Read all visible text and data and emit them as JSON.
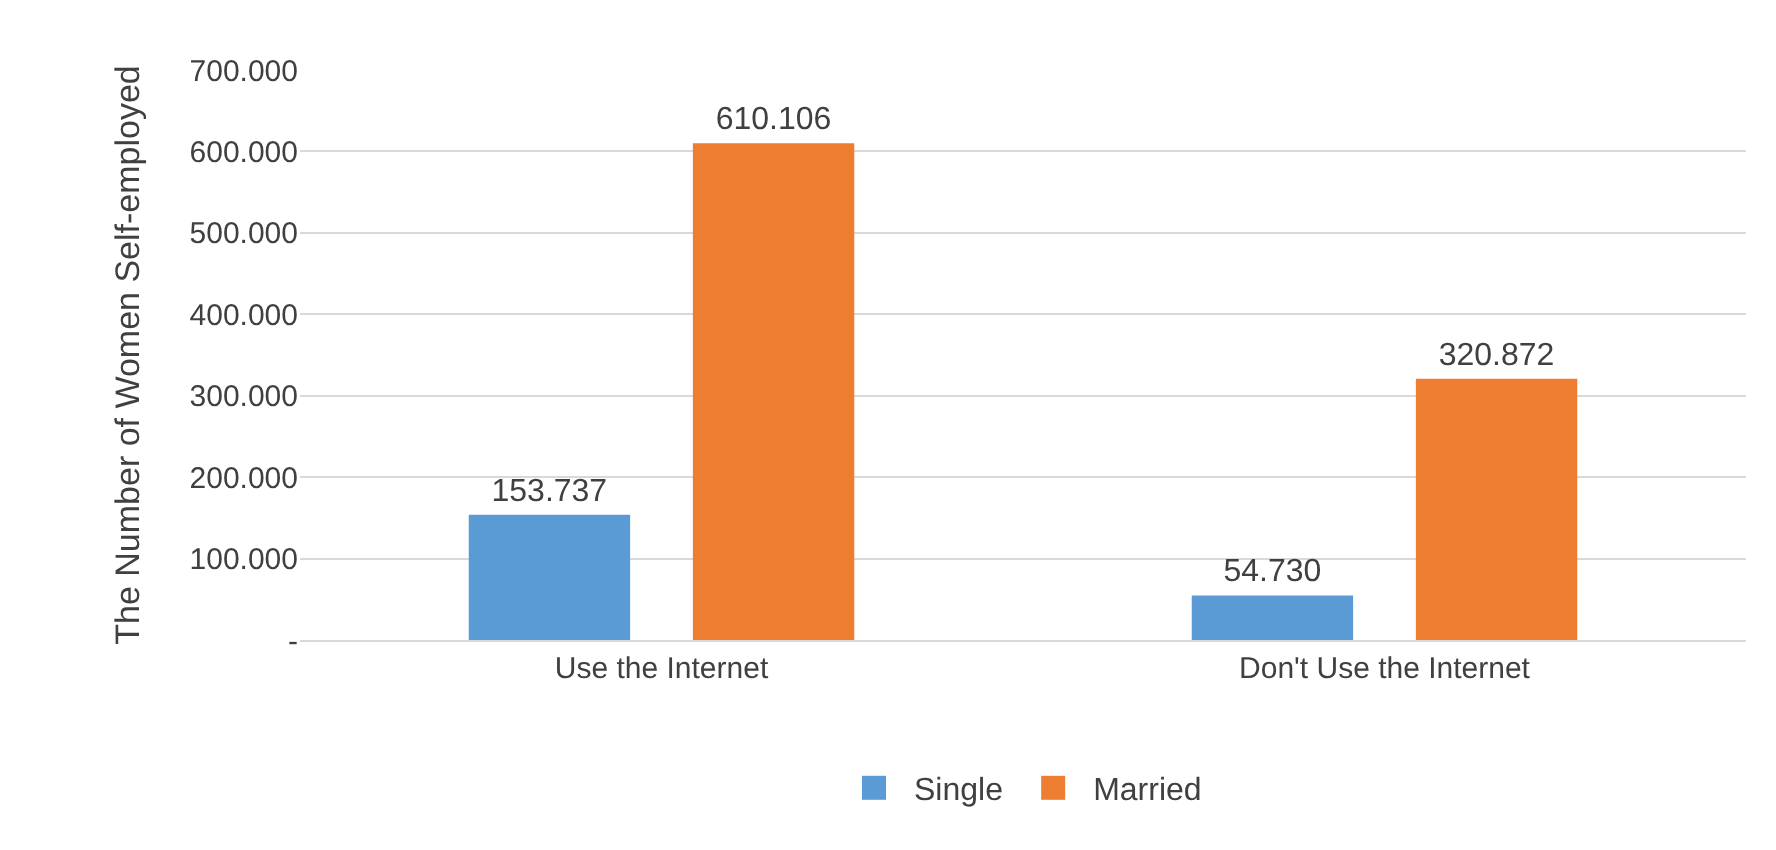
{
  "chart_data": {
    "type": "bar",
    "ylabel": "The Number of Women Self-employed",
    "categories": [
      "Use the Internet",
      "Don't Use the Internet"
    ],
    "series": [
      {
        "name": "Single",
        "color": "#5b9bd5",
        "values": [
          153737,
          54730
        ],
        "value_labels": [
          "153.737",
          "54.730"
        ]
      },
      {
        "name": "Married",
        "color": "#ed7d31",
        "values": [
          610106,
          320872
        ],
        "value_labels": [
          "610.106",
          "320.872"
        ]
      }
    ],
    "ylim": [
      0,
      700000
    ],
    "yticks": [
      {
        "value": 0,
        "label": "-"
      },
      {
        "value": 100000,
        "label": "100.000"
      },
      {
        "value": 200000,
        "label": "200.000"
      },
      {
        "value": 300000,
        "label": "300.000"
      },
      {
        "value": 400000,
        "label": "400.000"
      },
      {
        "value": 500000,
        "label": "500.000"
      },
      {
        "value": 600000,
        "label": "600.000"
      },
      {
        "value": 700000,
        "label": "700.000"
      }
    ],
    "grid": "y",
    "legend": "bottom"
  }
}
